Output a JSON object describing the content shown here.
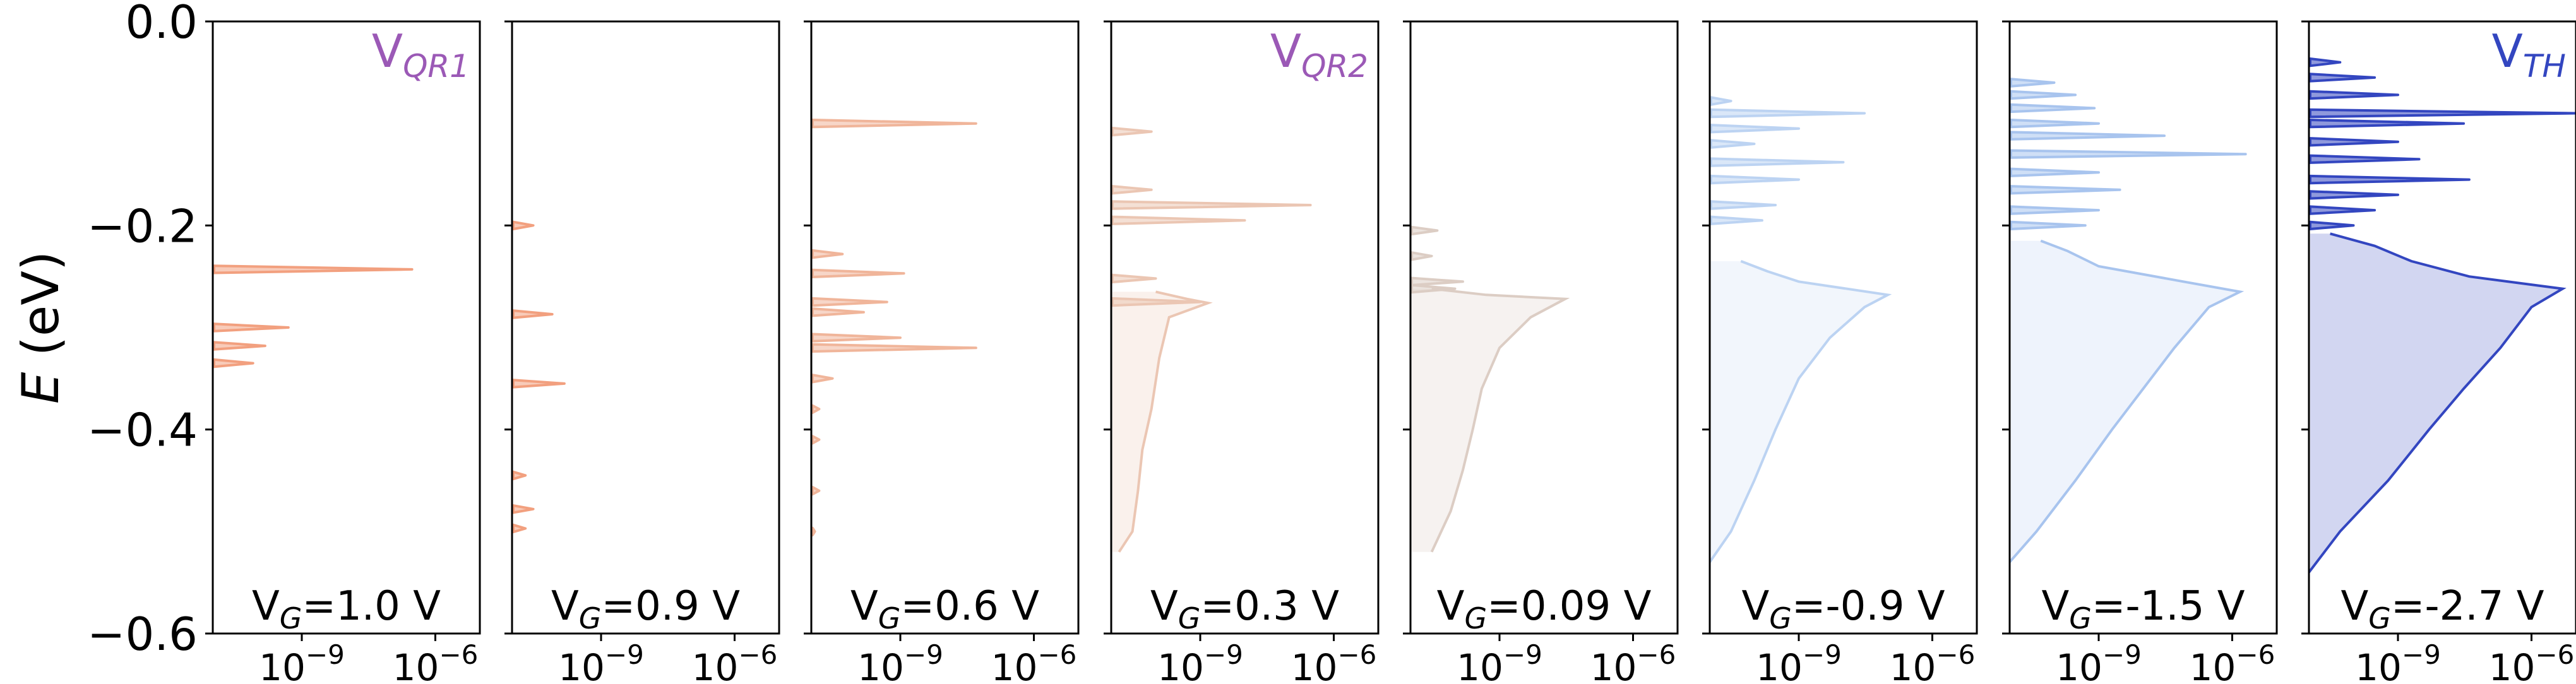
{
  "chart_data": {
    "type": "area",
    "y_axis": {
      "label": "E",
      "unit": "(eV)",
      "range": [
        -0.6,
        0.0
      ],
      "ticks": [
        0.0,
        -0.2,
        -0.4,
        -0.6
      ],
      "tick_labels": [
        "0.0",
        "−0.2",
        "−0.4",
        "−0.6"
      ]
    },
    "x_axis": {
      "scale": "log",
      "range": [
        1e-11,
        1e-05
      ],
      "ticks": [
        1e-09,
        1e-06
      ],
      "tick_labels": [
        {
          "base": "10",
          "exp": "−9"
        },
        {
          "base": "10",
          "exp": "−6"
        }
      ]
    },
    "annotations": [
      {
        "panel": 0,
        "base": "V",
        "sub": "QR1",
        "color": "#9b59b6"
      },
      {
        "panel": 3,
        "base": "V",
        "sub": "QR2",
        "color": "#9b59b6"
      },
      {
        "panel": 7,
        "base": "V",
        "sub": "TH",
        "color": "#3346c0"
      }
    ],
    "panels": [
      {
        "label_base": "V",
        "label_sub": "G",
        "label_rest": "=1.0 V",
        "color": "#f2a07f",
        "fill_opacity": 0.0,
        "peaks": [
          [
            -0.243,
            3e-07
          ],
          [
            -0.3,
            5e-10
          ],
          [
            -0.318,
            1.5e-10
          ],
          [
            -0.335,
            8e-11
          ]
        ],
        "band": null
      },
      {
        "label_base": "V",
        "label_sub": "G",
        "label_rest": "=0.9 V",
        "color": "#f2a07f",
        "fill_opacity": 0.0,
        "peaks": [
          [
            -0.2,
            3e-11
          ],
          [
            -0.287,
            8e-11
          ],
          [
            -0.355,
            1.5e-10
          ],
          [
            -0.445,
            2e-11
          ],
          [
            -0.478,
            3e-11
          ],
          [
            -0.497,
            2e-11
          ]
        ],
        "band": null
      },
      {
        "label_base": "V",
        "label_sub": "G",
        "label_rest": "=0.6 V",
        "color": "#f0b59a",
        "fill_opacity": 0.0,
        "peaks": [
          [
            -0.1,
            5e-08
          ],
          [
            -0.228,
            5e-11
          ],
          [
            -0.247,
            1.2e-09
          ],
          [
            -0.275,
            5e-10
          ],
          [
            -0.285,
            1.5e-10
          ],
          [
            -0.31,
            1e-09
          ],
          [
            -0.32,
            5e-08
          ],
          [
            -0.35,
            3e-11
          ],
          [
            -0.38,
            1.5e-11
          ],
          [
            -0.41,
            1.5e-11
          ],
          [
            -0.46,
            1.5e-11
          ],
          [
            -0.5,
            1.2e-11
          ]
        ],
        "band": null
      },
      {
        "label_base": "V",
        "label_sub": "G",
        "label_rest": "=0.3 V",
        "color": "#ebc6b3",
        "fill_opacity": 0.25,
        "peaks": [
          [
            -0.108,
            8e-11
          ],
          [
            -0.165,
            8e-11
          ],
          [
            -0.18,
            3e-07
          ],
          [
            -0.195,
            1e-08
          ],
          [
            -0.252,
            1e-10
          ],
          [
            -0.275,
            1e-09
          ]
        ],
        "band": [
          [
            -0.265,
            1e-10
          ],
          [
            -0.272,
            5e-10
          ],
          [
            -0.276,
            1.5e-09
          ],
          [
            -0.29,
            2e-10
          ],
          [
            -0.33,
            1.2e-10
          ],
          [
            -0.38,
            8e-11
          ],
          [
            -0.42,
            5e-11
          ],
          [
            -0.46,
            4e-11
          ],
          [
            -0.5,
            3e-11
          ],
          [
            -0.52,
            1.5e-11
          ]
        ]
      },
      {
        "label_base": "V",
        "label_sub": "G",
        "label_rest": "=0.09 V",
        "color": "#dccdc4",
        "fill_opacity": 0.25,
        "peaks": [
          [
            -0.205,
            4e-11
          ],
          [
            -0.23,
            3e-11
          ],
          [
            -0.255,
            1.5e-10
          ],
          [
            -0.262,
            1e-10
          ]
        ],
        "band": [
          [
            -0.262,
            3e-11
          ],
          [
            -0.268,
            5e-10
          ],
          [
            -0.272,
            3e-08
          ],
          [
            -0.29,
            5e-09
          ],
          [
            -0.32,
            1e-09
          ],
          [
            -0.36,
            4e-10
          ],
          [
            -0.4,
            2.5e-10
          ],
          [
            -0.44,
            1.5e-10
          ],
          [
            -0.48,
            8e-11
          ],
          [
            -0.52,
            3e-11
          ]
        ]
      },
      {
        "label_base": "V",
        "label_sub": "G",
        "label_rest": "=-0.9 V",
        "color": "#bcd3f2",
        "fill_opacity": 0.2,
        "peaks": [
          [
            -0.078,
            3e-11
          ],
          [
            -0.09,
            3e-08
          ],
          [
            -0.105,
            1e-09
          ],
          [
            -0.12,
            1e-10
          ],
          [
            -0.138,
            1e-08
          ],
          [
            -0.155,
            1e-09
          ],
          [
            -0.18,
            3e-10
          ],
          [
            -0.195,
            1.5e-10
          ]
        ],
        "band": [
          [
            -0.235,
            5e-11
          ],
          [
            -0.245,
            2e-10
          ],
          [
            -0.255,
            1e-09
          ],
          [
            -0.268,
            1e-07
          ],
          [
            -0.28,
            3e-08
          ],
          [
            -0.31,
            5e-09
          ],
          [
            -0.35,
            1e-09
          ],
          [
            -0.4,
            3e-10
          ],
          [
            -0.45,
            1e-10
          ],
          [
            -0.5,
            3e-11
          ],
          [
            -0.53,
            1e-11
          ]
        ]
      },
      {
        "label_base": "V",
        "label_sub": "G",
        "label_rest": "=-1.5 V",
        "color": "#a8c4ee",
        "fill_opacity": 0.2,
        "peaks": [
          [
            -0.06,
            1e-10
          ],
          [
            -0.072,
            3e-10
          ],
          [
            -0.085,
            8e-10
          ],
          [
            -0.1,
            1e-09
          ],
          [
            -0.112,
            3e-08
          ],
          [
            -0.13,
            2e-06
          ],
          [
            -0.148,
            1e-09
          ],
          [
            -0.165,
            3e-09
          ],
          [
            -0.185,
            1e-09
          ],
          [
            -0.2,
            5e-10
          ]
        ],
        "band": [
          [
            -0.215,
            5e-11
          ],
          [
            -0.225,
            2e-10
          ],
          [
            -0.24,
            1e-09
          ],
          [
            -0.255,
            8e-08
          ],
          [
            -0.265,
            1.5e-06
          ],
          [
            -0.28,
            3e-07
          ],
          [
            -0.32,
            5e-08
          ],
          [
            -0.36,
            1e-08
          ],
          [
            -0.4,
            2e-09
          ],
          [
            -0.45,
            3e-10
          ],
          [
            -0.5,
            4e-11
          ],
          [
            -0.53,
            1e-11
          ]
        ]
      },
      {
        "label_base": "V",
        "label_sub": "G",
        "label_rest": "=-2.7 V",
        "color": "#3346c0",
        "fill_opacity": 0.22,
        "peaks": [
          [
            -0.04,
            5e-11
          ],
          [
            -0.055,
            3e-10
          ],
          [
            -0.072,
            1e-09
          ],
          [
            -0.09,
            1e-05
          ],
          [
            -0.1,
            3e-08
          ],
          [
            -0.118,
            1e-09
          ],
          [
            -0.135,
            3e-09
          ],
          [
            -0.155,
            4e-08
          ],
          [
            -0.17,
            1e-09
          ],
          [
            -0.185,
            3e-10
          ],
          [
            -0.2,
            1e-10
          ]
        ],
        "band": [
          [
            -0.208,
            3e-11
          ],
          [
            -0.22,
            3e-10
          ],
          [
            -0.235,
            2e-09
          ],
          [
            -0.25,
            4e-08
          ],
          [
            -0.262,
            5e-06
          ],
          [
            -0.28,
            1e-06
          ],
          [
            -0.32,
            2e-07
          ],
          [
            -0.36,
            3e-08
          ],
          [
            -0.4,
            5e-09
          ],
          [
            -0.45,
            6e-10
          ],
          [
            -0.5,
            5e-11
          ],
          [
            -0.54,
            1e-11
          ]
        ]
      }
    ]
  }
}
